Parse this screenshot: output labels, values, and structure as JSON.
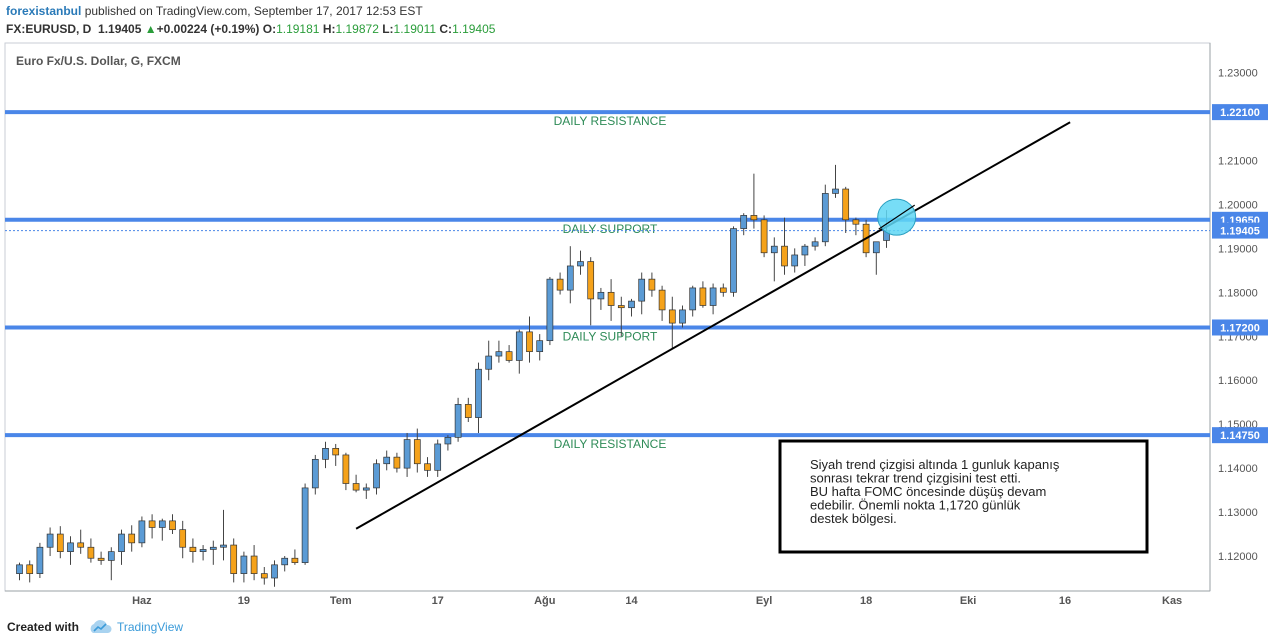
{
  "header": {
    "author": "forexistanbul",
    "published": " published on TradingView.com, September 17, 2017 12:53 EST",
    "symbol": "FX:EURUSD, D",
    "last": "1.19405",
    "change": "+0.00224 (+0.19%)",
    "o_label": "O:",
    "o_value": "1.19181",
    "h_label": "H:",
    "h_value": "1.19872",
    "l_label": "L:",
    "l_value": "1.19011",
    "c_label": "C:",
    "c_value": "1.19405"
  },
  "footer": {
    "created_with": "Created with",
    "brand": "TradingView"
  },
  "colors": {
    "up": "#5b9bd5",
    "down": "#f5a21a",
    "level": "#4a86e8",
    "annotation": "#2e8b57",
    "circle": "#5fd7f5"
  },
  "chart_data": {
    "type": "candlestick",
    "title": "Euro Fx/U.S. Dollar, G, FXCM",
    "x_ticks": [
      "Haz",
      "19",
      "Tem",
      "17",
      "Ağu",
      "14",
      "Eyl",
      "18",
      "Eki",
      "16",
      "Kas"
    ],
    "y_ticks": [
      "1.23000",
      "1.21000",
      "1.20000",
      "1.19000",
      "1.18000",
      "1.17000",
      "1.16000",
      "1.15000",
      "1.14000",
      "1.13000",
      "1.12000"
    ],
    "ylim": [
      1.1125,
      1.2365
    ],
    "levels": [
      {
        "label": "DAILY  RESISTANCE",
        "price": "1.22100",
        "value": 1.221
      },
      {
        "label": "DAILY  SUPPORT",
        "price": "1.19650",
        "value": 1.1965
      },
      {
        "label": "DAILY  SUPPORT",
        "price": "1.17200",
        "value": 1.172
      },
      {
        "label": "DAILY  RESISTANCE",
        "price": "1.14750",
        "value": 1.1475
      }
    ],
    "last_price": {
      "label": "1.19405",
      "value": 1.19405
    },
    "trendline": {
      "from": [
        33,
        1.1262
      ],
      "to": [
        103,
        1.2187
      ]
    },
    "marker_circle": {
      "bar": 86,
      "value": 1.1971
    },
    "note_lines": [
      "Siyah  trend  çizgisi  altında 1 gunluk  kapanış",
      "sonrası    tekrar    trend çizgisini   test etti.",
      "BU hafta FOMC  öncesinde  düşüş  devam",
      "edebilir. Önemli nokta  1,1720  günlük",
      "destek  bölgesi."
    ],
    "candles": [
      [
        1.116,
        1.1185,
        1.1145,
        1.118
      ],
      [
        1.118,
        1.119,
        1.114,
        1.116
      ],
      [
        1.116,
        1.123,
        1.115,
        1.122
      ],
      [
        1.122,
        1.1265,
        1.12,
        1.125
      ],
      [
        1.125,
        1.1268,
        1.1195,
        1.121
      ],
      [
        1.121,
        1.1245,
        1.118,
        1.123
      ],
      [
        1.123,
        1.126,
        1.1205,
        1.122
      ],
      [
        1.122,
        1.124,
        1.1185,
        1.1195
      ],
      [
        1.1195,
        1.121,
        1.118,
        1.119
      ],
      [
        1.119,
        1.122,
        1.1145,
        1.121
      ],
      [
        1.121,
        1.126,
        1.118,
        1.125
      ],
      [
        1.125,
        1.127,
        1.121,
        1.123
      ],
      [
        1.123,
        1.129,
        1.122,
        1.128
      ],
      [
        1.128,
        1.1295,
        1.124,
        1.1265
      ],
      [
        1.1265,
        1.1285,
        1.1235,
        1.128
      ],
      [
        1.128,
        1.1295,
        1.125,
        1.126
      ],
      [
        1.126,
        1.128,
        1.1195,
        1.122
      ],
      [
        1.122,
        1.124,
        1.1185,
        1.121
      ],
      [
        1.121,
        1.1225,
        1.119,
        1.1215
      ],
      [
        1.1215,
        1.1235,
        1.118,
        1.122
      ],
      [
        1.122,
        1.1305,
        1.119,
        1.1225
      ],
      [
        1.1225,
        1.124,
        1.114,
        1.116
      ],
      [
        1.116,
        1.121,
        1.114,
        1.12
      ],
      [
        1.12,
        1.1225,
        1.1145,
        1.116
      ],
      [
        1.116,
        1.1175,
        1.1135,
        1.115
      ],
      [
        1.115,
        1.119,
        1.113,
        1.118
      ],
      [
        1.118,
        1.12,
        1.1165,
        1.1195
      ],
      [
        1.1195,
        1.1215,
        1.118,
        1.1185
      ],
      [
        1.1185,
        1.1365,
        1.118,
        1.1355
      ],
      [
        1.1355,
        1.143,
        1.134,
        1.142
      ],
      [
        1.142,
        1.146,
        1.14,
        1.1445
      ],
      [
        1.1445,
        1.1455,
        1.1405,
        1.143
      ],
      [
        1.143,
        1.1435,
        1.135,
        1.1365
      ],
      [
        1.1365,
        1.1385,
        1.1345,
        1.135
      ],
      [
        1.135,
        1.1365,
        1.133,
        1.1355
      ],
      [
        1.1355,
        1.142,
        1.134,
        1.141
      ],
      [
        1.141,
        1.144,
        1.1395,
        1.1425
      ],
      [
        1.1425,
        1.1435,
        1.139,
        1.14
      ],
      [
        1.14,
        1.148,
        1.138,
        1.1465
      ],
      [
        1.1465,
        1.149,
        1.139,
        1.141
      ],
      [
        1.141,
        1.1425,
        1.138,
        1.1395
      ],
      [
        1.1395,
        1.1465,
        1.138,
        1.1455
      ],
      [
        1.1455,
        1.1475,
        1.144,
        1.147
      ],
      [
        1.147,
        1.156,
        1.146,
        1.1545
      ],
      [
        1.1545,
        1.156,
        1.1505,
        1.1515
      ],
      [
        1.1515,
        1.164,
        1.148,
        1.1625
      ],
      [
        1.1625,
        1.169,
        1.16,
        1.1655
      ],
      [
        1.1655,
        1.169,
        1.164,
        1.1665
      ],
      [
        1.1665,
        1.168,
        1.164,
        1.1645
      ],
      [
        1.1645,
        1.1715,
        1.1615,
        1.171
      ],
      [
        1.171,
        1.1745,
        1.164,
        1.1665
      ],
      [
        1.1665,
        1.1705,
        1.1645,
        1.169
      ],
      [
        1.169,
        1.1835,
        1.168,
        1.183
      ],
      [
        1.183,
        1.1845,
        1.1795,
        1.1805
      ],
      [
        1.1805,
        1.1905,
        1.1775,
        1.186
      ],
      [
        1.186,
        1.1895,
        1.184,
        1.187
      ],
      [
        1.187,
        1.188,
        1.1725,
        1.1785
      ],
      [
        1.1785,
        1.181,
        1.176,
        1.18
      ],
      [
        1.18,
        1.183,
        1.1735,
        1.177
      ],
      [
        1.177,
        1.179,
        1.17,
        1.1765
      ],
      [
        1.1765,
        1.1785,
        1.1745,
        1.178
      ],
      [
        1.178,
        1.1845,
        1.175,
        1.183
      ],
      [
        1.183,
        1.1845,
        1.179,
        1.1805
      ],
      [
        1.1805,
        1.1815,
        1.1735,
        1.176
      ],
      [
        1.176,
        1.179,
        1.167,
        1.173
      ],
      [
        1.173,
        1.177,
        1.172,
        1.176
      ],
      [
        1.176,
        1.1815,
        1.1745,
        1.181
      ],
      [
        1.181,
        1.1825,
        1.1765,
        1.177
      ],
      [
        1.177,
        1.182,
        1.175,
        1.181
      ],
      [
        1.181,
        1.182,
        1.179,
        1.18
      ],
      [
        1.18,
        1.195,
        1.179,
        1.1945
      ],
      [
        1.1945,
        1.198,
        1.193,
        1.1975
      ],
      [
        1.1975,
        1.207,
        1.1945,
        1.1965
      ],
      [
        1.1965,
        1.1975,
        1.188,
        1.189
      ],
      [
        1.189,
        1.1925,
        1.1825,
        1.1905
      ],
      [
        1.1905,
        1.197,
        1.184,
        1.186
      ],
      [
        1.186,
        1.19,
        1.1845,
        1.1885
      ],
      [
        1.1885,
        1.191,
        1.186,
        1.1905
      ],
      [
        1.1905,
        1.1925,
        1.1895,
        1.1915
      ],
      [
        1.1915,
        1.2045,
        1.1905,
        1.2025
      ],
      [
        1.2025,
        1.209,
        1.2015,
        1.2035
      ],
      [
        1.2035,
        1.204,
        1.1935,
        1.1965
      ],
      [
        1.1965,
        1.197,
        1.193,
        1.1955
      ],
      [
        1.1955,
        1.1965,
        1.188,
        1.189
      ],
      [
        1.189,
        1.1915,
        1.184,
        1.1915
      ],
      [
        1.1918,
        1.1987,
        1.1901,
        1.194
      ]
    ]
  }
}
